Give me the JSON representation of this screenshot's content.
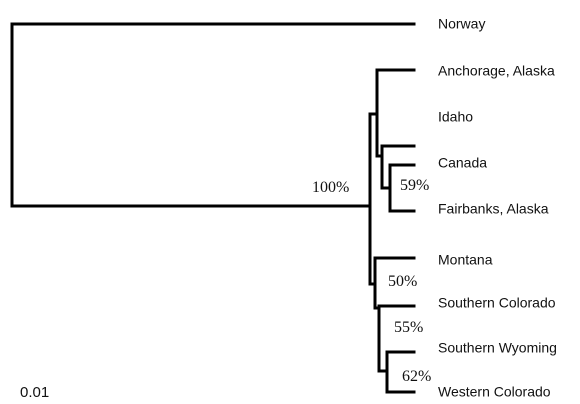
{
  "tree": {
    "taxa": {
      "norway": "Norway",
      "anchorage": "Anchorage, Alaska",
      "idaho": "Idaho",
      "canada": "Canada",
      "fairbanks": "Fairbanks, Alaska",
      "montana": "Montana",
      "southern_colorado": "Southern Colorado",
      "southern_wyoming": "Southern Wyoming",
      "western_colorado": "Western Colorado"
    },
    "support": {
      "ingroup": "100%",
      "canada_fairbanks": "59%",
      "montana_group": "50%",
      "colorado_group": "55%",
      "wyoming_colorado": "62%"
    },
    "scale_bar": {
      "label": "0.01"
    }
  }
}
